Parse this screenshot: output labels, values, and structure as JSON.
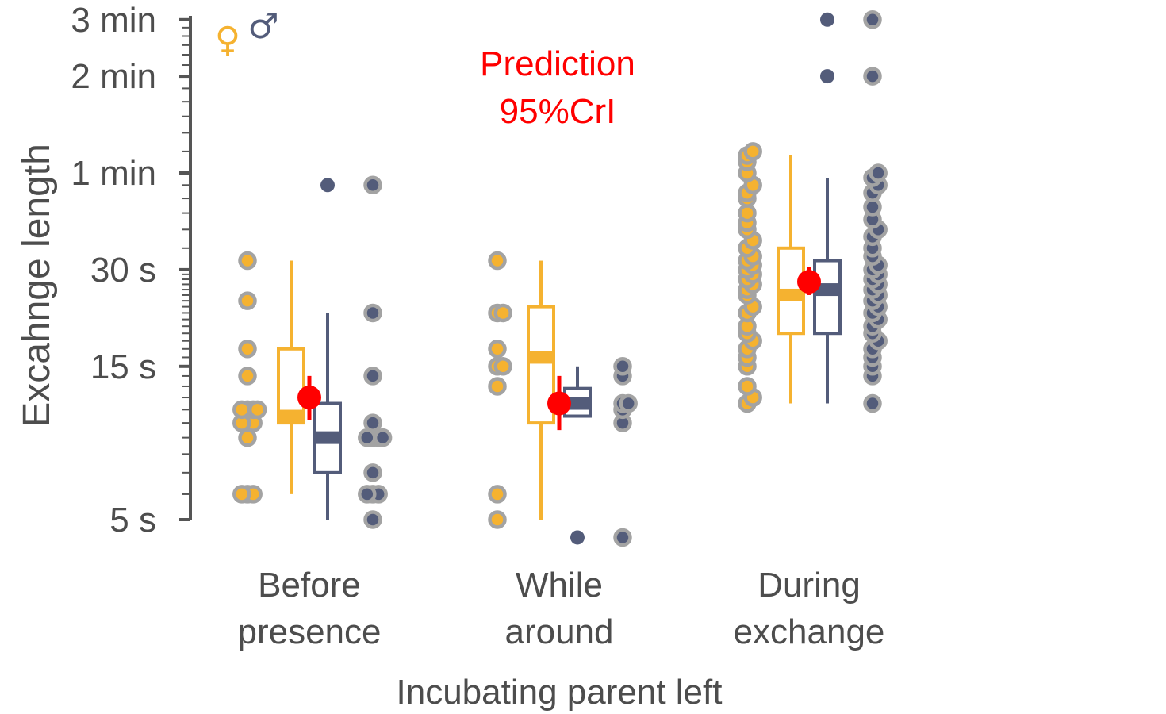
{
  "chart_data": {
    "type": "boxplot",
    "scale": "log",
    "ylabel": "Excahnge length",
    "xlabel": "Incubating parent left",
    "ylim_seconds": [
      4.3,
      185
    ],
    "y_ticks": [
      {
        "label": "5 s",
        "value": 5
      },
      {
        "label": "15 s",
        "value": 15
      },
      {
        "label": "30 s",
        "value": 30
      },
      {
        "label": "1 min",
        "value": 60
      },
      {
        "label": "2 min",
        "value": 120
      },
      {
        "label": "3 min",
        "value": 180
      }
    ],
    "sex_symbols": {
      "female": "♀",
      "male": "♂"
    },
    "annotation": {
      "line1": "Prediction",
      "line2": "95%CrI"
    },
    "colors": {
      "female": "#F5B230",
      "male": "#535C7A",
      "prediction": "#FF0000",
      "point_outline": "#A3A3A3",
      "axis": "#555555",
      "text": "#4d4d4d"
    },
    "categories": [
      {
        "label_line1": "Before",
        "label_line2": "presence",
        "female": {
          "box": {
            "whisker_low": 6,
            "q1": 10,
            "median": 10.5,
            "q3": 17,
            "whisker_high": 32
          },
          "points": [
            6,
            6,
            6,
            9,
            10,
            10,
            10,
            11,
            11,
            11,
            11,
            14,
            17,
            24,
            32
          ]
        },
        "male": {
          "box": {
            "whisker_low": 5,
            "q1": 7,
            "median": 9,
            "q3": 11.5,
            "whisker_high": 22
          },
          "outliers": [
            55
          ],
          "points": [
            5,
            6,
            6,
            6,
            7,
            9,
            9,
            9,
            9,
            10,
            14,
            22,
            55
          ]
        },
        "prediction": {
          "estimate": 12,
          "low": 10.2,
          "high": 14
        }
      },
      {
        "label_line1": "While",
        "label_line2": "around",
        "female": {
          "box": {
            "whisker_low": 5,
            "q1": 10,
            "median": 16,
            "q3": 23,
            "whisker_high": 32
          },
          "points": [
            5,
            6,
            13,
            15,
            15,
            17,
            22,
            22,
            32
          ]
        },
        "male": {
          "box": {
            "whisker_low": 10.5,
            "q1": 10.5,
            "median": 11.5,
            "q3": 12.8,
            "whisker_high": 15
          },
          "outliers": [
            4.4
          ],
          "points": [
            4.4,
            10,
            11,
            11.5,
            11.5,
            14,
            15
          ]
        },
        "prediction": {
          "estimate": 11.5,
          "low": 9.5,
          "high": 14
        }
      },
      {
        "label_line1": "During",
        "label_line2": "exchange",
        "female": {
          "box": {
            "whisker_low": 11.5,
            "q1": 19,
            "median": 25,
            "q3": 35,
            "whisker_high": 68
          },
          "points": [
            11.5,
            12,
            13,
            15,
            16,
            17,
            18,
            19,
            20,
            22,
            23,
            25,
            26,
            27,
            28,
            29,
            30,
            31,
            32,
            33,
            35,
            37,
            40,
            42,
            45,
            50,
            52,
            55,
            60,
            65,
            68,
            70
          ]
        },
        "male": {
          "box": {
            "whisker_low": 11.5,
            "q1": 19,
            "median": 26,
            "q3": 32,
            "whisker_high": 58
          },
          "outliers": [
            120,
            180
          ],
          "points": [
            11.5,
            14,
            15,
            16,
            17,
            18,
            19,
            20,
            21,
            22,
            23,
            24,
            25,
            26,
            27,
            28,
            29,
            30,
            31,
            33,
            35,
            38,
            40,
            43,
            47,
            52,
            55,
            58,
            60,
            120,
            180
          ]
        },
        "prediction": {
          "estimate": 27.5,
          "low": 25,
          "high": 30.5
        }
      }
    ]
  }
}
